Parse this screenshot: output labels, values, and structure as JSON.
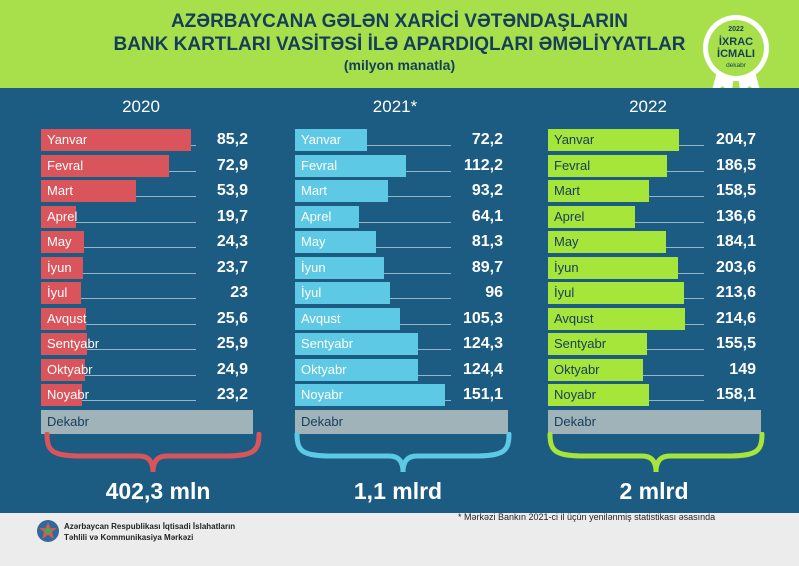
{
  "header": {
    "title_line1": "AZƏRBAYCANA GƏLƏN XARİCİ VƏTƏNDAŞLARIN",
    "title_line2": "BANK KARTLARI VASİTƏSİ İLƏ APARDIQLARI ƏMƏLİYYATLAR",
    "subtitle": "(milyon manatla)"
  },
  "badge": {
    "year": "2022",
    "line1": "İXRAC",
    "line2": "İCMALI",
    "line3": "dekabr",
    "color": "#a7e04a"
  },
  "colors": {
    "header_bg": "#a7e04a",
    "panel_bg": "#1c5b82",
    "c2020": "#d9545b",
    "c2021": "#5ec9e4",
    "c2022": "#a6e53a",
    "december": "#9fb3b9"
  },
  "chart_data": [
    {
      "type": "bar",
      "title": "2020",
      "categories": [
        "Yanvar",
        "Fevral",
        "Mart",
        "Aprel",
        "May",
        "İyun",
        "İyul",
        "Avqust",
        "Sentyabr",
        "Oktyabr",
        "Noyabr",
        "Dekabr"
      ],
      "values": [
        85.2,
        72.9,
        53.9,
        19.7,
        24.3,
        23.7,
        23,
        25.6,
        25.9,
        24.9,
        23.2,
        null
      ],
      "value_labels": [
        "85,2",
        "72,9",
        "53,9",
        "19,7",
        "24,3",
        "23,7",
        "23",
        "25,6",
        "25,9",
        "24,9",
        "23,2",
        ""
      ],
      "total": "402,3 mln"
    },
    {
      "type": "bar",
      "title": "2021*",
      "categories": [
        "Yanvar",
        "Fevral",
        "Mart",
        "Aprel",
        "May",
        "İyun",
        "İyul",
        "Avqust",
        "Sentyabr",
        "Oktyabr",
        "Noyabr",
        "Dekabr"
      ],
      "values": [
        72.2,
        112.2,
        93.2,
        64.1,
        81.3,
        89.7,
        96,
        105.3,
        124.3,
        124.4,
        151.1,
        null
      ],
      "value_labels": [
        "72,2",
        "112,2",
        "93,2",
        "64,1",
        "81,3",
        "89,7",
        "96",
        "105,3",
        "124,3",
        "124,4",
        "151,1",
        ""
      ],
      "total": "1,1 mlrd"
    },
    {
      "type": "bar",
      "title": "2022",
      "categories": [
        "Yanvar",
        "Fevral",
        "Mart",
        "Aprel",
        "May",
        "İyun",
        "İyul",
        "Avqust",
        "Sentyabr",
        "Oktyabr",
        "Noyabr",
        "Dekabr"
      ],
      "values": [
        204.7,
        186.5,
        158.5,
        136.6,
        184.1,
        203.6,
        213.6,
        214.6,
        155.5,
        149,
        158.1,
        null
      ],
      "value_labels": [
        "204,7",
        "186,5",
        "158,5",
        "136,6",
        "184,1",
        "203,6",
        "213,6",
        "214,6",
        "155,5",
        "149",
        "158,1",
        ""
      ],
      "total": "2 mlrd"
    }
  ],
  "footnote": "* Mərkəzi Bankın 2021-ci il üçün yenilənmiş statistikası əsasında",
  "organization": {
    "line1": "Azərbaycan Respublikası İqtisadi İslahatların",
    "line2": "Təhlili və Kommunikasiya Mərkəzi"
  }
}
